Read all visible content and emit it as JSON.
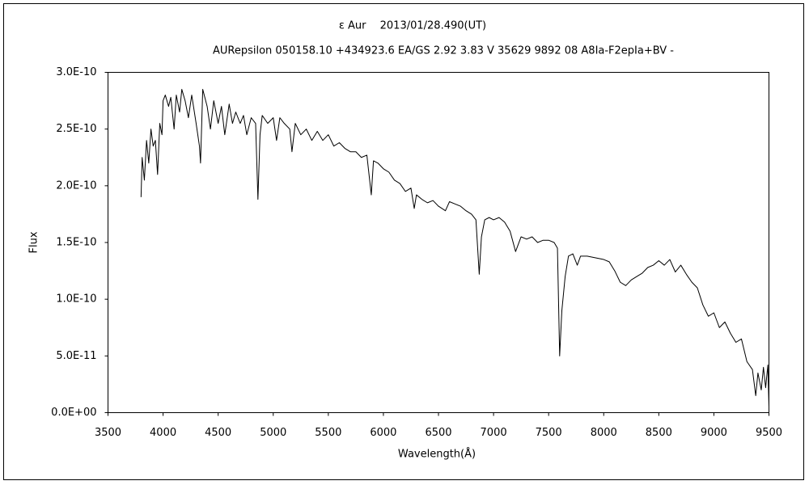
{
  "chart_data": {
    "type": "line",
    "title": "ε Aur　 2013/01/28.490(UT)",
    "subtitle": "AURepsilon 050158.10 +434923.6 EA/GS 2.92 3.83 V 35629 9892 08 A8Ia-F2epIa+BV -",
    "xlabel": "Wavelength(Å)",
    "ylabel": "Flux",
    "color": "#000000",
    "grid": false,
    "xlim": [
      3500,
      9500
    ],
    "xticks": [
      3500,
      4000,
      4500,
      5000,
      5500,
      6000,
      6500,
      7000,
      7500,
      8000,
      8500,
      9000,
      9500
    ],
    "ylim": [
      0,
      3e-10
    ],
    "yticks": [
      {
        "value": 0,
        "label": "0.0E+00"
      },
      {
        "value": 5e-11,
        "label": "5.0E-11"
      },
      {
        "value": 1e-10,
        "label": "1.0E-10"
      },
      {
        "value": 1.5e-10,
        "label": "1.5E-10"
      },
      {
        "value": 2e-10,
        "label": "2.0E-10"
      },
      {
        "value": 2.5e-10,
        "label": "2.5E-10"
      },
      {
        "value": 3e-10,
        "label": "3.0E-10"
      }
    ],
    "x": [
      3800,
      3810,
      3830,
      3850,
      3870,
      3890,
      3910,
      3930,
      3950,
      3970,
      3990,
      4000,
      4020,
      4050,
      4070,
      4100,
      4120,
      4150,
      4170,
      4200,
      4230,
      4260,
      4300,
      4330,
      4340,
      4360,
      4400,
      4430,
      4460,
      4500,
      4530,
      4560,
      4600,
      4630,
      4660,
      4700,
      4730,
      4760,
      4800,
      4840,
      4861,
      4880,
      4900,
      4950,
      5000,
      5030,
      5060,
      5100,
      5150,
      5170,
      5200,
      5250,
      5300,
      5350,
      5400,
      5450,
      5500,
      5550,
      5600,
      5650,
      5700,
      5750,
      5800,
      5850,
      5890,
      5910,
      5950,
      6000,
      6050,
      6100,
      6150,
      6200,
      6250,
      6280,
      6300,
      6350,
      6400,
      6450,
      6500,
      6563,
      6600,
      6650,
      6700,
      6750,
      6800,
      6840,
      6870,
      6890,
      6920,
      6960,
      7000,
      7050,
      7100,
      7150,
      7200,
      7250,
      7300,
      7350,
      7400,
      7450,
      7500,
      7550,
      7580,
      7600,
      7620,
      7650,
      7680,
      7720,
      7760,
      7790,
      7850,
      7900,
      7950,
      8000,
      8050,
      8100,
      8150,
      8200,
      8250,
      8300,
      8350,
      8400,
      8450,
      8500,
      8550,
      8600,
      8650,
      8700,
      8750,
      8800,
      8850,
      8900,
      8950,
      9000,
      9050,
      9100,
      9150,
      9200,
      9250,
      9300,
      9350,
      9380,
      9400,
      9430,
      9450,
      9470,
      9490,
      9500
    ],
    "values": [
      1.9e-10,
      2.25e-10,
      2.05e-10,
      2.4e-10,
      2.2e-10,
      2.5e-10,
      2.35e-10,
      2.4e-10,
      2.1e-10,
      2.55e-10,
      2.45e-10,
      2.75e-10,
      2.8e-10,
      2.7e-10,
      2.78e-10,
      2.5e-10,
      2.8e-10,
      2.65e-10,
      2.85e-10,
      2.75e-10,
      2.6e-10,
      2.8e-10,
      2.55e-10,
      2.35e-10,
      2.2e-10,
      2.85e-10,
      2.7e-10,
      2.5e-10,
      2.75e-10,
      2.55e-10,
      2.7e-10,
      2.45e-10,
      2.72e-10,
      2.55e-10,
      2.65e-10,
      2.55e-10,
      2.62e-10,
      2.45e-10,
      2.6e-10,
      2.55e-10,
      1.88e-10,
      2.45e-10,
      2.62e-10,
      2.55e-10,
      2.6e-10,
      2.4e-10,
      2.6e-10,
      2.55e-10,
      2.5e-10,
      2.3e-10,
      2.55e-10,
      2.45e-10,
      2.5e-10,
      2.4e-10,
      2.48e-10,
      2.4e-10,
      2.45e-10,
      2.35e-10,
      2.38e-10,
      2.33e-10,
      2.3e-10,
      2.3e-10,
      2.25e-10,
      2.27e-10,
      1.92e-10,
      2.22e-10,
      2.2e-10,
      2.15e-10,
      2.12e-10,
      2.05e-10,
      2.02e-10,
      1.95e-10,
      1.98e-10,
      1.8e-10,
      1.92e-10,
      1.88e-10,
      1.85e-10,
      1.87e-10,
      1.82e-10,
      1.78e-10,
      1.86e-10,
      1.84e-10,
      1.82e-10,
      1.78e-10,
      1.75e-10,
      1.7e-10,
      1.22e-10,
      1.55e-10,
      1.7e-10,
      1.72e-10,
      1.7e-10,
      1.72e-10,
      1.68e-10,
      1.6e-10,
      1.42e-10,
      1.55e-10,
      1.53e-10,
      1.55e-10,
      1.5e-10,
      1.52e-10,
      1.52e-10,
      1.5e-10,
      1.45e-10,
      5e-11,
      9e-11,
      1.2e-10,
      1.38e-10,
      1.4e-10,
      1.3e-10,
      1.38e-10,
      1.38e-10,
      1.37e-10,
      1.36e-10,
      1.35e-10,
      1.33e-10,
      1.25e-10,
      1.15e-10,
      1.12e-10,
      1.17e-10,
      1.2e-10,
      1.23e-10,
      1.28e-10,
      1.3e-10,
      1.34e-10,
      1.3e-10,
      1.35e-10,
      1.24e-10,
      1.3e-10,
      1.22e-10,
      1.15e-10,
      1.1e-10,
      9.5e-11,
      8.5e-11,
      8.8e-11,
      7.5e-11,
      8e-11,
      7e-11,
      6.2e-11,
      6.5e-11,
      4.5e-11,
      3.8e-11,
      1.5e-11,
      3.5e-11,
      2e-11,
      4e-11,
      2.2e-11,
      4.2e-11,
      5e-12
    ]
  }
}
